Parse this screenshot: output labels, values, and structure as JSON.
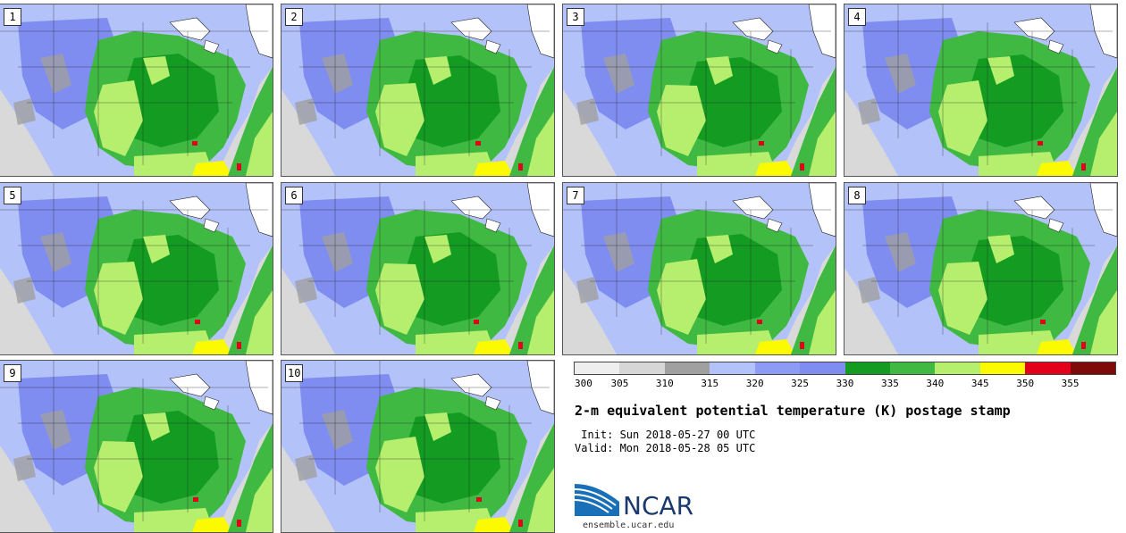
{
  "panels": [
    {
      "label": "1"
    },
    {
      "label": "2"
    },
    {
      "label": "3"
    },
    {
      "label": "4"
    },
    {
      "label": "5"
    },
    {
      "label": "6"
    },
    {
      "label": "7"
    },
    {
      "label": "8"
    },
    {
      "label": "9"
    },
    {
      "label": "10"
    }
  ],
  "colorbar": {
    "levels": [
      "300",
      "305",
      "310",
      "315",
      "320",
      "325",
      "330",
      "335",
      "340",
      "345",
      "350",
      "355"
    ],
    "colors": [
      "#eeeeee",
      "#d6d6d6",
      "#a0a0a0",
      "#b4c2fa",
      "#8c9cf5",
      "#7f8cf0",
      "#139b22",
      "#3fb941",
      "#b6ef6d",
      "#fbfa00",
      "#e3001a",
      "#7e0a0a"
    ]
  },
  "colors": {
    "ocean": "#d9d9d9",
    "land_cold": "#b4c2fa",
    "land_cool": "#7f8cf0",
    "gray": "#a0a0a0",
    "green_dark": "#139b22",
    "green": "#3fb941",
    "light_green": "#b6ef6d",
    "yellow": "#fbfa00",
    "red": "#e3001a",
    "lakes": "#ffffff"
  },
  "title": "2-m equivalent potential temperature (K) postage stamp",
  "init": " Init: Sun 2018-05-27 00 UTC",
  "valid": "Valid: Mon 2018-05-28 05 UTC",
  "logo": {
    "text": "NCAR",
    "url": "ensemble.ucar.edu"
  }
}
